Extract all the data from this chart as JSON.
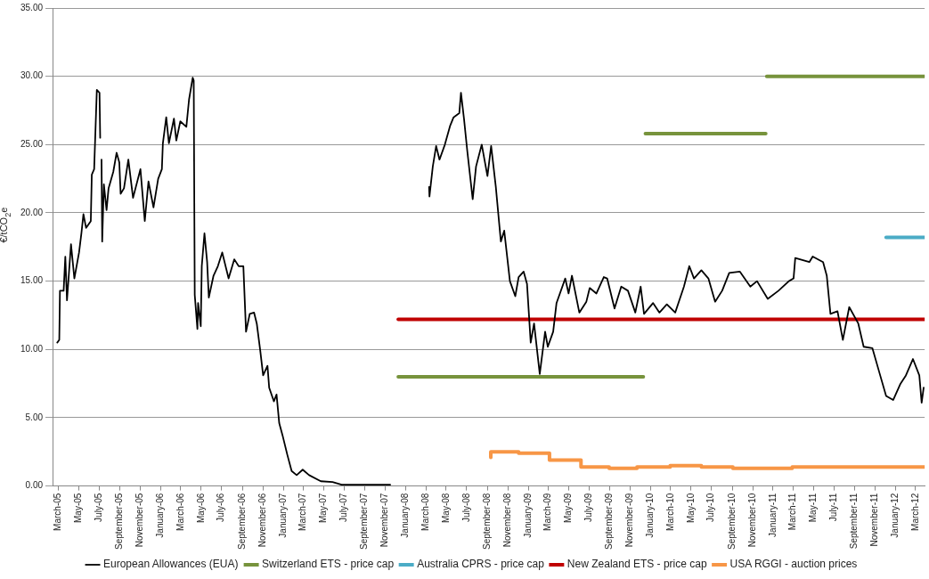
{
  "chart_data": {
    "type": "line",
    "ylabel": "€/tCO$_{2}$e",
    "grid": "y",
    "legend": "bottom",
    "xlim": [
      "2005-02-12",
      "2012-03-28"
    ],
    "ylim": [
      0,
      35
    ],
    "yticks": [
      {
        "value": 0,
        "label": "0.00"
      },
      {
        "value": 5,
        "label": "5.00"
      },
      {
        "value": 10,
        "label": "10.00"
      },
      {
        "value": 15,
        "label": "15.00"
      },
      {
        "value": 20,
        "label": "20.00"
      },
      {
        "value": 25,
        "label": "25.00"
      },
      {
        "value": 30,
        "label": "30.00"
      },
      {
        "value": 35,
        "label": "35.00"
      }
    ],
    "xticks": [
      {
        "value": "2005-03-01",
        "label": "March-05"
      },
      {
        "value": "2005-05-01",
        "label": "May-05"
      },
      {
        "value": "2005-07-01",
        "label": "July-05"
      },
      {
        "value": "2005-09-01",
        "label": "September-05"
      },
      {
        "value": "2005-11-01",
        "label": "November-05"
      },
      {
        "value": "2006-01-01",
        "label": "January-06"
      },
      {
        "value": "2006-03-01",
        "label": "March-06"
      },
      {
        "value": "2006-05-01",
        "label": "May-06"
      },
      {
        "value": "2006-07-01",
        "label": "July-06"
      },
      {
        "value": "2006-09-01",
        "label": "September-06"
      },
      {
        "value": "2006-11-01",
        "label": "November-06"
      },
      {
        "value": "2007-01-01",
        "label": "January-07"
      },
      {
        "value": "2007-03-01",
        "label": "March-07"
      },
      {
        "value": "2007-05-01",
        "label": "May-07"
      },
      {
        "value": "2007-07-01",
        "label": "July-07"
      },
      {
        "value": "2007-09-01",
        "label": "September-07"
      },
      {
        "value": "2007-11-01",
        "label": "November-07"
      },
      {
        "value": "2008-01-01",
        "label": "January-08"
      },
      {
        "value": "2008-03-01",
        "label": "March-08"
      },
      {
        "value": "2008-05-01",
        "label": "May-08"
      },
      {
        "value": "2008-07-01",
        "label": "July-08"
      },
      {
        "value": "2008-09-01",
        "label": "September-08"
      },
      {
        "value": "2008-11-01",
        "label": "November-08"
      },
      {
        "value": "2009-01-01",
        "label": "January-09"
      },
      {
        "value": "2009-03-01",
        "label": "March-09"
      },
      {
        "value": "2009-05-01",
        "label": "May-09"
      },
      {
        "value": "2009-07-01",
        "label": "July-09"
      },
      {
        "value": "2009-09-01",
        "label": "September-09"
      },
      {
        "value": "2009-11-01",
        "label": "November-09"
      },
      {
        "value": "2010-01-01",
        "label": "January-10"
      },
      {
        "value": "2010-03-01",
        "label": "March-10"
      },
      {
        "value": "2010-05-01",
        "label": "May-10"
      },
      {
        "value": "2010-07-01",
        "label": "July-10"
      },
      {
        "value": "2010-09-01",
        "label": "September-10"
      },
      {
        "value": "2010-11-01",
        "label": "November-10"
      },
      {
        "value": "2011-01-01",
        "label": "January-11"
      },
      {
        "value": "2011-03-01",
        "label": "March-11"
      },
      {
        "value": "2011-05-01",
        "label": "May-11"
      },
      {
        "value": "2011-07-01",
        "label": "July-11"
      },
      {
        "value": "2011-09-01",
        "label": "September-11"
      },
      {
        "value": "2011-11-01",
        "label": "November-11"
      },
      {
        "value": "2012-01-01",
        "label": "January-12"
      },
      {
        "value": "2012-03-01",
        "label": "March-12"
      }
    ],
    "series": [
      {
        "name": "European Allowances (EUA)",
        "type": "line",
        "color": "#000000",
        "x": [
          "2005-02-26",
          "2005-03-04",
          "2005-03-06",
          "2005-03-17",
          "2005-03-22",
          "2005-03-27",
          "2005-04-08",
          "2005-04-18",
          "2005-05-02",
          "2005-05-09",
          "2005-05-15",
          "2005-05-23",
          "2005-06-06",
          "2005-06-09",
          "2005-06-16",
          "2005-06-24",
          "2005-07-02",
          "2005-07-04",
          "2005-07-06",
          "2005-07-08",
          "2005-07-10",
          "2005-07-15",
          "2005-07-23",
          "2005-07-29",
          "2005-08-12",
          "2005-08-22",
          "2005-08-30",
          "2005-09-03",
          "2005-09-13",
          "2005-09-26",
          "2005-10-10",
          "2005-11-01",
          "2005-11-14",
          "2005-11-25",
          "2005-12-10",
          "2005-12-24",
          "2006-01-04",
          "2006-01-07",
          "2006-01-17",
          "2006-01-25",
          "2006-02-09",
          "2006-02-16",
          "2006-02-28",
          "2006-03-18",
          "2006-03-26",
          "2006-04-06",
          "2006-04-09",
          "2006-04-12",
          "2006-04-20",
          "2006-04-22",
          "2006-04-30",
          "2006-05-03",
          "2006-05-11",
          "2006-05-19",
          "2006-05-24",
          "2006-06-07",
          "2006-06-20",
          "2006-07-03",
          "2006-07-22",
          "2006-08-08",
          "2006-08-21",
          "2006-09-04",
          "2006-09-12",
          "2006-09-23",
          "2006-10-06",
          "2006-10-14",
          "2006-10-24",
          "2006-11-02",
          "2006-11-15",
          "2006-11-20",
          "2006-12-04",
          "2006-12-12",
          "2006-12-20",
          "2006-12-30",
          "2007-01-13",
          "2007-01-26",
          "2007-02-10",
          "2007-02-28",
          "2007-03-19",
          "2007-04-23",
          "2007-05-28",
          "2007-06-24",
          "2007-11-16",
          "2008-01-15",
          "2008-03-11",
          "2008-03-12",
          "2008-03-22",
          "2008-04-01",
          "2008-04-11",
          "2008-04-27",
          "2008-05-13",
          "2008-05-23",
          "2008-06-09",
          "2008-06-14",
          "2008-06-23",
          "2008-07-03",
          "2008-07-19",
          "2008-07-29",
          "2008-08-15",
          "2008-09-01",
          "2008-09-12",
          "2008-09-26",
          "2008-10-11",
          "2008-10-21",
          "2008-11-07",
          "2008-11-23",
          "2008-12-03",
          "2008-12-18",
          "2008-12-28",
          "2009-01-08",
          "2009-01-18",
          "2009-02-04",
          "2009-02-20",
          "2009-02-28",
          "2009-03-16",
          "2009-03-26",
          "2009-04-21",
          "2009-05-01",
          "2009-05-11",
          "2009-06-02",
          "2009-06-23",
          "2009-07-03",
          "2009-07-23",
          "2009-08-14",
          "2009-08-24",
          "2009-09-15",
          "2009-10-05",
          "2009-10-25",
          "2009-11-16",
          "2009-12-02",
          "2009-12-12",
          "2010-01-08",
          "2010-01-27",
          "2010-02-18",
          "2010-03-15",
          "2010-04-10",
          "2010-04-26",
          "2010-05-10",
          "2010-06-01",
          "2010-06-22",
          "2010-07-12",
          "2010-08-02",
          "2010-08-23",
          "2010-09-24",
          "2010-10-25",
          "2010-11-14",
          "2010-12-16",
          "2011-01-17",
          "2011-02-17",
          "2011-03-03",
          "2011-03-08",
          "2011-04-19",
          "2011-04-29",
          "2011-05-30",
          "2011-06-10",
          "2011-06-21",
          "2011-07-12",
          "2011-07-28",
          "2011-08-16",
          "2011-09-12",
          "2011-09-28",
          "2011-10-24",
          "2011-11-14",
          "2011-12-04",
          "2011-12-25",
          "2012-01-16",
          "2012-02-01",
          "2012-02-22",
          "2012-03-12",
          "2012-03-19",
          "2012-03-25"
        ],
        "values": [
          10.5,
          10.7,
          14.3,
          14.3,
          16.8,
          13.6,
          17.7,
          15.2,
          17.1,
          18.5,
          19.9,
          18.9,
          19.4,
          22.8,
          23.2,
          29.0,
          28.8,
          25.5,
          null,
          23.9,
          17.9,
          22.1,
          20.2,
          21.8,
          23.0,
          24.4,
          23.7,
          21.4,
          21.8,
          23.9,
          21.1,
          23.2,
          19.4,
          22.3,
          20.4,
          22.5,
          23.2,
          25.1,
          27.0,
          25.1,
          26.9,
          25.3,
          26.7,
          26.3,
          28.3,
          29.9,
          29.7,
          14.0,
          11.5,
          13.4,
          11.7,
          16.1,
          18.5,
          16.4,
          13.8,
          15.4,
          16.1,
          17.1,
          15.2,
          16.6,
          16.1,
          16.1,
          11.3,
          12.6,
          12.7,
          11.9,
          10.0,
          8.1,
          8.8,
          7.2,
          6.2,
          6.7,
          4.6,
          3.7,
          2.3,
          1.1,
          0.8,
          1.2,
          0.8,
          0.35,
          0.3,
          0.1,
          0.1,
          null,
          21.9,
          21.2,
          23.4,
          24.9,
          23.9,
          25.0,
          26.4,
          27.0,
          27.3,
          28.8,
          26.9,
          24.5,
          21.0,
          23.4,
          25.0,
          22.7,
          24.9,
          21.9,
          17.9,
          18.7,
          15.0,
          13.9,
          15.3,
          15.7,
          14.8,
          10.5,
          11.9,
          8.2,
          11.3,
          10.2,
          11.3,
          13.4,
          15.2,
          14.1,
          15.4,
          12.7,
          13.5,
          14.5,
          14.1,
          15.3,
          15.2,
          13.0,
          14.6,
          14.3,
          12.7,
          14.6,
          12.6,
          13.4,
          12.7,
          13.3,
          12.7,
          14.6,
          16.1,
          15.2,
          15.8,
          15.2,
          13.5,
          14.3,
          15.6,
          15.7,
          14.6,
          15.0,
          13.7,
          14.3,
          15.0,
          15.2,
          16.7,
          16.4,
          16.8,
          16.4,
          15.4,
          12.6,
          12.8,
          10.7,
          13.1,
          11.9,
          10.2,
          10.1,
          8.3,
          6.6,
          6.3,
          7.5,
          8.1,
          9.3,
          8.1,
          6.1,
          7.2
        ]
      },
      {
        "name": "Switzerland ETS - price cap",
        "type": "line",
        "color": "#77933c",
        "x": [
          "2007-12-10",
          "2009-12-10",
          "2009-12-13",
          "2009-12-16",
          "2010-12-10",
          "2010-12-12",
          "2010-12-13",
          "2012-03-28"
        ],
        "values": [
          8.0,
          8.0,
          null,
          25.8,
          25.8,
          null,
          30.0,
          30.0
        ]
      },
      {
        "name": "Australia CPRS - price cap",
        "type": "line",
        "color": "#4bacc6",
        "x": [
          "2011-12-04",
          "2012-03-28"
        ],
        "values": [
          18.2,
          18.2
        ]
      },
      {
        "name": "New Zealand ETS - price cap",
        "type": "line",
        "color": "#c00000",
        "x": [
          "2007-12-10",
          "2012-03-28"
        ],
        "values": [
          12.2,
          12.2
        ]
      },
      {
        "name": "USA RGGI - auction prices",
        "type": "step",
        "color": "#f79646",
        "x": [
          "2008-09-11",
          "2008-12-03",
          "2009-03-05",
          "2009-06-07",
          "2009-08-30",
          "2009-11-21",
          "2010-02-28",
          "2010-06-01",
          "2010-09-03",
          "2011-02-27",
          "2011-11-29",
          "2012-03-28"
        ],
        "values": [
          2.1,
          2.5,
          2.4,
          1.9,
          1.4,
          1.3,
          1.4,
          1.5,
          1.4,
          1.3,
          1.4,
          1.4
        ]
      }
    ]
  }
}
